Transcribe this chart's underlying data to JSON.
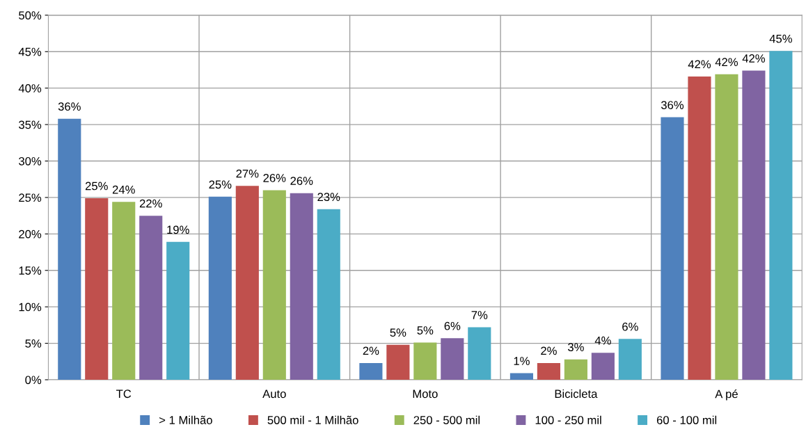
{
  "chart_data": {
    "type": "bar",
    "categories": [
      "TC",
      "Auto",
      "Moto",
      "Bicicleta",
      "A pé"
    ],
    "series": [
      {
        "name": "> 1 Milhão",
        "color": "#4f81bd",
        "values": [
          35.8,
          25.1,
          2.3,
          0.9,
          36.0
        ],
        "value_labels": [
          "36%",
          "25%",
          "2%",
          "1%",
          "36%"
        ]
      },
      {
        "name": "500 mil - 1 Milhão",
        "color": "#c0504d",
        "values": [
          24.9,
          26.6,
          4.8,
          2.3,
          41.6
        ],
        "value_labels": [
          "25%",
          "27%",
          "5%",
          "2%",
          "42%"
        ]
      },
      {
        "name": "250 - 500 mil",
        "color": "#9bbb59",
        "values": [
          24.4,
          26.0,
          5.1,
          2.8,
          41.9
        ],
        "value_labels": [
          "24%",
          "26%",
          "5%",
          "3%",
          "42%"
        ]
      },
      {
        "name": "100 - 250 mil",
        "color": "#8064a2",
        "values": [
          22.5,
          25.6,
          5.7,
          3.7,
          42.4
        ],
        "value_labels": [
          "22%",
          "26%",
          "6%",
          "4%",
          "42%"
        ]
      },
      {
        "name": "60 - 100 mil",
        "color": "#4bacc6",
        "values": [
          18.9,
          23.4,
          7.2,
          5.6,
          45.1
        ],
        "value_labels": [
          "19%",
          "23%",
          "7%",
          "6%",
          "45%"
        ]
      }
    ],
    "ylim": [
      0,
      50
    ],
    "yticks": [
      {
        "value": 0,
        "label": "0%"
      },
      {
        "value": 5,
        "label": "5%"
      },
      {
        "value": 10,
        "label": "10%"
      },
      {
        "value": 15,
        "label": "15%"
      },
      {
        "value": 20,
        "label": "20%"
      },
      {
        "value": 25,
        "label": "25%"
      },
      {
        "value": 30,
        "label": "30%"
      },
      {
        "value": 35,
        "label": "35%"
      },
      {
        "value": 40,
        "label": "40%"
      },
      {
        "value": 45,
        "label": "45%"
      },
      {
        "value": 50,
        "label": "50%"
      }
    ],
    "grid": true,
    "legend": "bottom"
  }
}
